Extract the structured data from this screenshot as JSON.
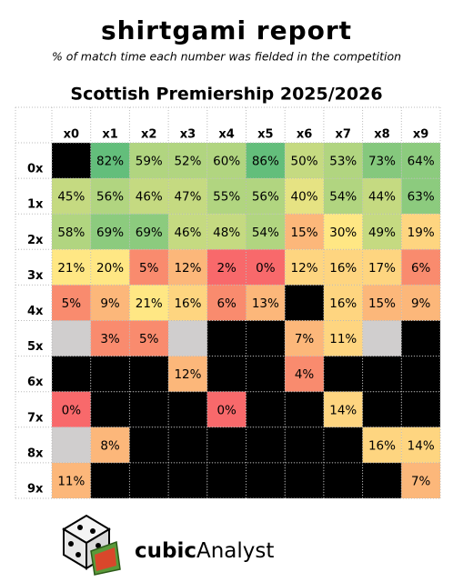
{
  "chart_data": {
    "type": "heatmap",
    "title": "shirtgami report",
    "subtitle": "% of match time each number was fielded in the competition",
    "heading": "Scottish Premiership 2025/2026",
    "x": [
      "x0",
      "x1",
      "x2",
      "x3",
      "x4",
      "x5",
      "x6",
      "x7",
      "x8",
      "x9"
    ],
    "y": [
      "0x",
      "1x",
      "2x",
      "3x",
      "4x",
      "5x",
      "6x",
      "7x",
      "8x",
      "9x"
    ],
    "values": [
      [
        null,
        82,
        59,
        52,
        60,
        86,
        50,
        53,
        73,
        64
      ],
      [
        45,
        56,
        46,
        47,
        55,
        56,
        40,
        54,
        44,
        63
      ],
      [
        58,
        69,
        69,
        46,
        48,
        54,
        15,
        30,
        49,
        19
      ],
      [
        21,
        20,
        5,
        12,
        2,
        0,
        12,
        16,
        17,
        6
      ],
      [
        5,
        9,
        21,
        16,
        6,
        13,
        null,
        16,
        15,
        9
      ],
      [
        null,
        3,
        5,
        null,
        null,
        null,
        7,
        11,
        null,
        null
      ],
      [
        null,
        null,
        null,
        12,
        null,
        null,
        4,
        null,
        null,
        null
      ],
      [
        0,
        null,
        null,
        null,
        0,
        null,
        null,
        14,
        null,
        null
      ],
      [
        null,
        8,
        null,
        null,
        null,
        null,
        null,
        null,
        16,
        14
      ],
      [
        11,
        null,
        null,
        null,
        null,
        null,
        null,
        null,
        null,
        7
      ]
    ],
    "value_labels": [
      [
        null,
        "82%",
        "59%",
        "52%",
        "60%",
        "86%",
        "50%",
        "53%",
        "73%",
        "64%"
      ],
      [
        "45%",
        "56%",
        "46%",
        "47%",
        "55%",
        "56%",
        "40%",
        "54%",
        "44%",
        "63%"
      ],
      [
        "58%",
        "69%",
        "69%",
        "46%",
        "48%",
        "54%",
        "15%",
        "30%",
        "49%",
        "19%"
      ],
      [
        "21%",
        "20%",
        "5%",
        "12%",
        "2%",
        "0%",
        "12%",
        "16%",
        "17%",
        "6%"
      ],
      [
        "5%",
        "9%",
        "21%",
        "16%",
        "6%",
        "13%",
        null,
        "16%",
        "15%",
        "9%"
      ],
      [
        null,
        "3%",
        "5%",
        null,
        null,
        null,
        "7%",
        "11%",
        null,
        null
      ],
      [
        null,
        null,
        null,
        "12%",
        null,
        null,
        "4%",
        null,
        null,
        null
      ],
      [
        "0%",
        null,
        null,
        null,
        "0%",
        null,
        null,
        "14%",
        null,
        null
      ],
      [
        null,
        "8%",
        null,
        null,
        null,
        null,
        null,
        null,
        "16%",
        "14%"
      ],
      [
        "11%",
        null,
        null,
        null,
        null,
        null,
        null,
        null,
        null,
        "7%"
      ]
    ],
    "colors": [
      [
        "#000000",
        "#63be7b",
        "#b1d580",
        "#b1d580",
        "#b1d580",
        "#63be7b",
        "#c5da81",
        "#b1d580",
        "#85c87d",
        "#8ccb7e"
      ],
      [
        "#c5da81",
        "#b1d580",
        "#c5da81",
        "#c5da81",
        "#b1d580",
        "#b1d580",
        "#e6e383",
        "#b1d580",
        "#c5da81",
        "#8ccb7e"
      ],
      [
        "#b1d580",
        "#8ccb7e",
        "#8ccb7e",
        "#c5da81",
        "#c5da81",
        "#b1d580",
        "#fcb77a",
        "#ffe784",
        "#c5da81",
        "#fed580"
      ],
      [
        "#ffe784",
        "#ffe784",
        "#f98b6e",
        "#fcb77a",
        "#f8696b",
        "#f8696b",
        "#fed580",
        "#fed580",
        "#fed580",
        "#f98b6e"
      ],
      [
        "#f98b6e",
        "#fcb77a",
        "#ffe784",
        "#fed580",
        "#f98b6e",
        "#fcb77a",
        "#000000",
        "#fed580",
        "#fcb77a",
        "#fcb77a"
      ],
      [
        "#d0cece",
        "#f98b6e",
        "#f98b6e",
        "#d0cece",
        "#000000",
        "#000000",
        "#fcb77a",
        "#fed580",
        "#d0cece",
        "#000000"
      ],
      [
        "#000000",
        "#000000",
        "#000000",
        "#fcb77a",
        "#000000",
        "#000000",
        "#f98b6e",
        "#000000",
        "#000000",
        "#000000"
      ],
      [
        "#f8696b",
        "#000000",
        "#000000",
        "#000000",
        "#f8696b",
        "#000000",
        "#000000",
        "#fed580",
        "#000000",
        "#000000"
      ],
      [
        "#d0cece",
        "#fcb77a",
        "#000000",
        "#000000",
        "#000000",
        "#000000",
        "#000000",
        "#000000",
        "#fed580",
        "#fed580"
      ],
      [
        "#fcb77a",
        "#000000",
        "#000000",
        "#000000",
        "#000000",
        "#000000",
        "#000000",
        "#000000",
        "#000000",
        "#fcb77a"
      ]
    ],
    "brand": {
      "bold": "cubic",
      "regular": "Analyst"
    }
  }
}
